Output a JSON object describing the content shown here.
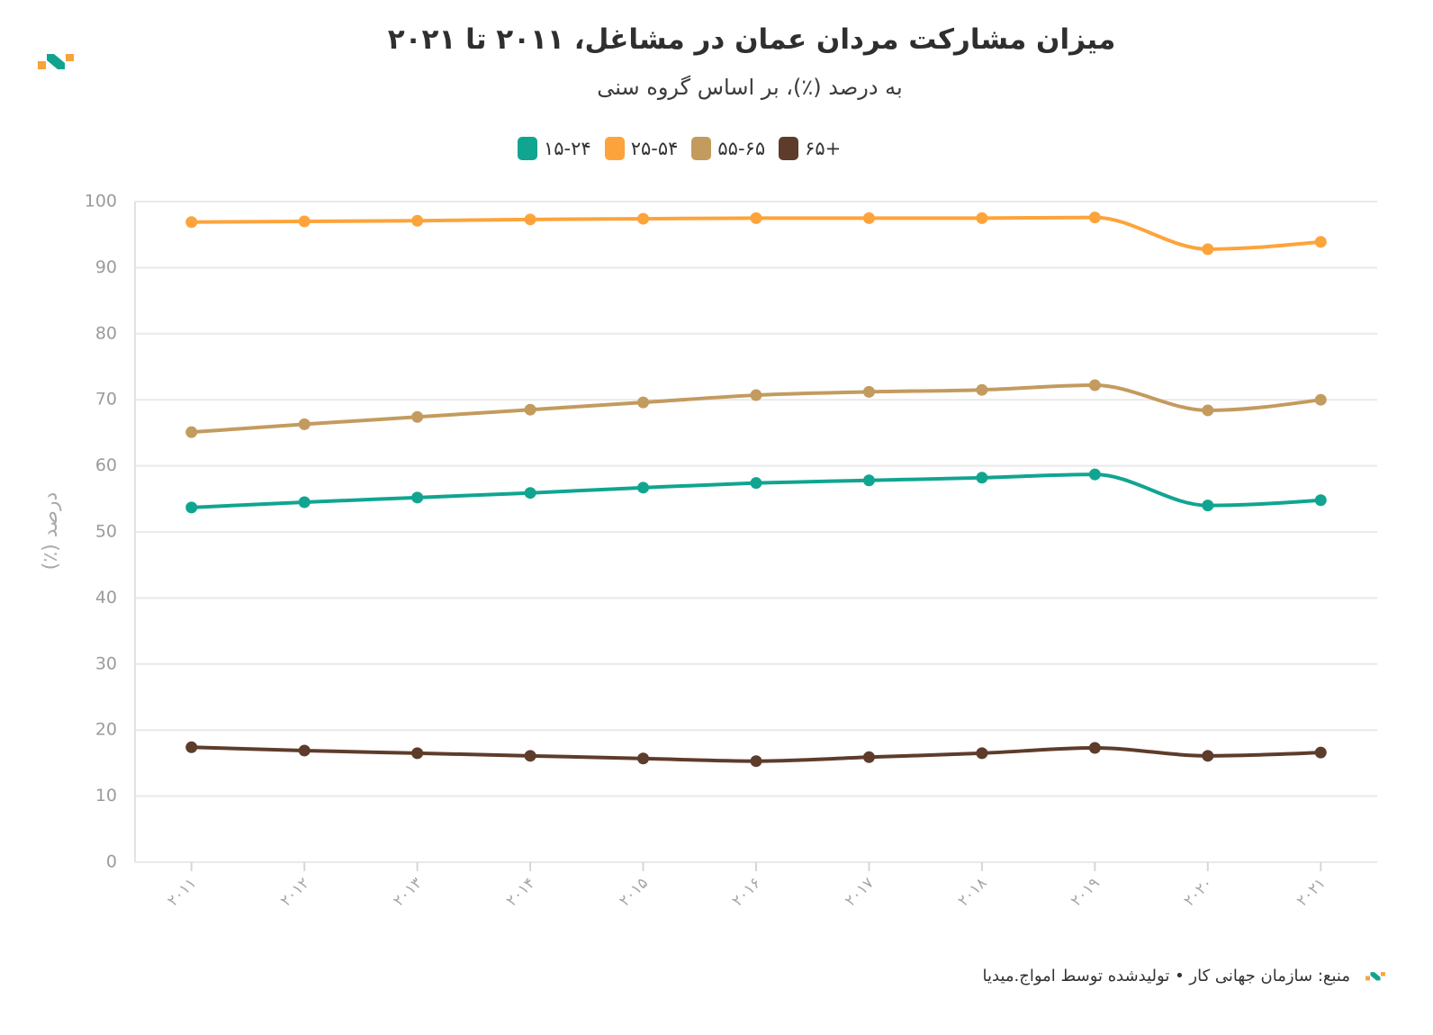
{
  "chart_data": {
    "type": "line",
    "title": "میزان مشارکت مردان عمان در مشاغل، ۲۰۱۱ تا ۲۰۲۱",
    "subtitle": "به درصد (٪)، بر اساس گروه سنی",
    "ylabel": "درصد (٪)",
    "x": [
      "۲۰۱۱",
      "۲۰۱۲",
      "۲۰۱۳",
      "۲۰۱۴",
      "۲۰۱۵",
      "۲۰۱۶",
      "۲۰۱۷",
      "۲۰۱۸",
      "۲۰۱۹",
      "۲۰۲۰",
      "۲۰۲۱"
    ],
    "ylim": [
      0,
      100
    ],
    "yticks": [
      0,
      10,
      20,
      30,
      40,
      50,
      60,
      70,
      80,
      90,
      100
    ],
    "grid": true,
    "legend_position": "top-center",
    "series": [
      {
        "name": "۱۵-۲۴",
        "color": "#10a591",
        "values": [
          53.7,
          54.5,
          55.2,
          55.9,
          56.7,
          57.4,
          57.8,
          58.2,
          58.7,
          54.0,
          54.8
        ]
      },
      {
        "name": "۲۵-۵۴",
        "color": "#fca43b",
        "values": [
          96.9,
          97.0,
          97.1,
          97.3,
          97.4,
          97.5,
          97.5,
          97.5,
          97.6,
          92.8,
          93.9
        ]
      },
      {
        "name": "۵۵-۶۵",
        "color": "#c39b5e",
        "values": [
          65.1,
          66.3,
          67.4,
          68.5,
          69.6,
          70.7,
          71.2,
          71.5,
          72.2,
          68.4,
          70.0
        ]
      },
      {
        "name": "۶۵+",
        "color": "#5e3c2b",
        "values": [
          17.4,
          16.9,
          16.5,
          16.1,
          15.7,
          15.3,
          15.9,
          16.5,
          17.3,
          16.1,
          16.6
        ]
      }
    ]
  },
  "footer": {
    "source": "منبع: سازمان جهانی کار • تولیدشده توسط امواج.میدیا"
  },
  "branding": {
    "logo_icon": "brand-logo-icon",
    "colors": {
      "orange": "#f7a23a",
      "teal": "#12a38e"
    }
  }
}
